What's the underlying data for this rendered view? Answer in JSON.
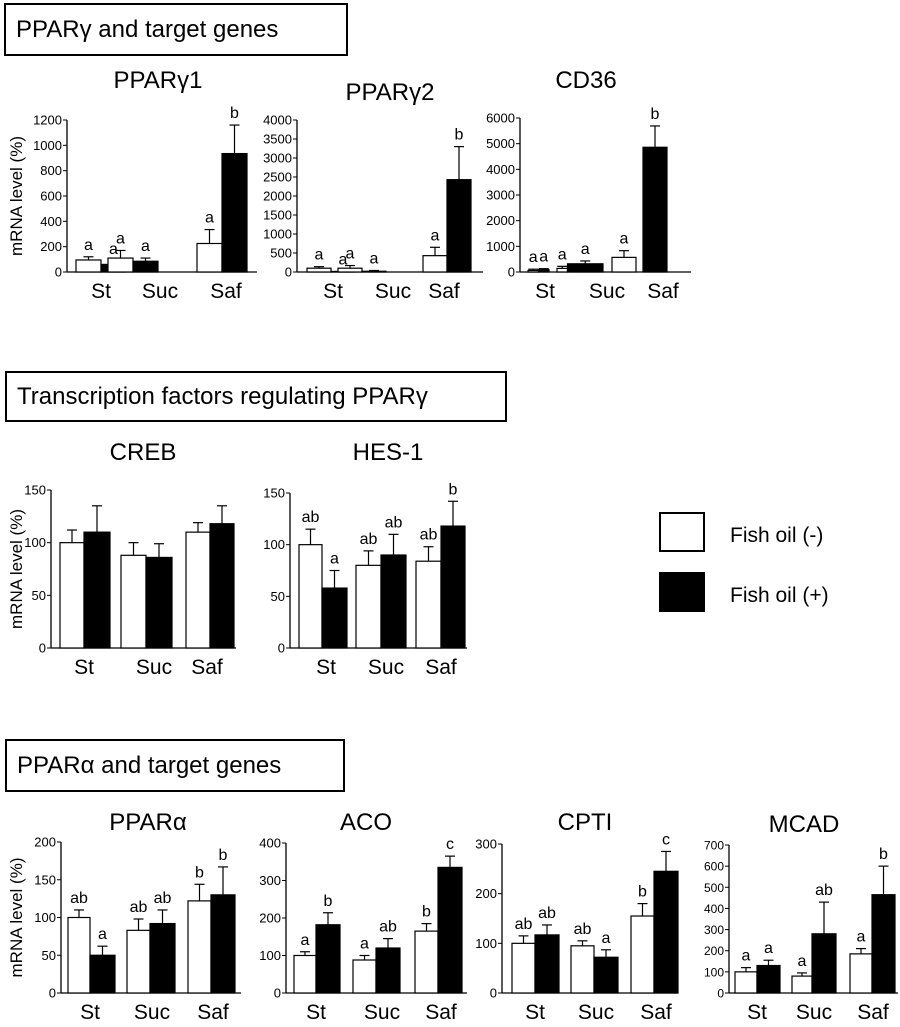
{
  "sections": [
    {
      "title": "PPARγ and target genes"
    },
    {
      "title": "Transcription factors regulating PPARγ"
    },
    {
      "title": "PPARα and target genes"
    }
  ],
  "legend": {
    "items": [
      {
        "label": "Fish oil (-)",
        "color": "#ffffff"
      },
      {
        "label": "Fish oil (+)",
        "color": "#000000"
      }
    ]
  },
  "chart_data": [
    {
      "type": "bar",
      "title": "PPARγ1",
      "ylabel": "mRNA level (%)",
      "ylim": [
        0,
        1200
      ],
      "yticks": [
        0,
        200,
        400,
        600,
        800,
        1000,
        1200
      ],
      "categories": [
        "St",
        "Suc",
        "Saf"
      ],
      "series": [
        {
          "name": "Fish oil (-)",
          "values": [
            95,
            110,
            225
          ],
          "errors": [
            25,
            60,
            110
          ]
        },
        {
          "name": "Fish oil (+)",
          "values": [
            60,
            85,
            935
          ],
          "errors": [
            25,
            25,
            225
          ]
        }
      ],
      "annotations": [
        [
          "a",
          "a"
        ],
        [
          "a",
          "a"
        ],
        [
          "a",
          "b"
        ]
      ]
    },
    {
      "type": "bar",
      "title": "PPARγ2",
      "ylabel": "",
      "ylim": [
        0,
        4000
      ],
      "yticks": [
        0,
        500,
        1000,
        1500,
        2000,
        2500,
        3000,
        3500,
        4000
      ],
      "categories": [
        "St",
        "Suc",
        "Saf"
      ],
      "series": [
        {
          "name": "Fish oil (-)",
          "values": [
            100,
            100,
            430
          ],
          "errors": [
            40,
            70,
            220
          ]
        },
        {
          "name": "Fish oil (+)",
          "values": [
            15,
            20,
            2430
          ],
          "errors": [
            0,
            20,
            870
          ]
        }
      ],
      "annotations": [
        [
          "a",
          "a"
        ],
        [
          "a",
          "a"
        ],
        [
          "a",
          "b"
        ]
      ]
    },
    {
      "type": "bar",
      "title": "CD36",
      "ylabel": "",
      "ylim": [
        0,
        6000
      ],
      "yticks": [
        0,
        1000,
        2000,
        3000,
        4000,
        5000,
        6000
      ],
      "categories": [
        "St",
        "Suc",
        "Saf"
      ],
      "series": [
        {
          "name": "Fish oil (-)",
          "values": [
            60,
            140,
            570
          ],
          "errors": [
            50,
            80,
            260
          ]
        },
        {
          "name": "Fish oil (+)",
          "values": [
            90,
            320,
            4860
          ],
          "errors": [
            40,
            110,
            830
          ]
        }
      ],
      "annotations": [
        [
          "a",
          "a"
        ],
        [
          "a",
          "a"
        ],
        [
          "a",
          "b"
        ]
      ]
    },
    {
      "type": "bar",
      "title": "CREB",
      "ylabel": "mRNA level (%)",
      "ylim": [
        0,
        150
      ],
      "yticks": [
        0,
        50,
        100,
        150
      ],
      "categories": [
        "St",
        "Suc",
        "Saf"
      ],
      "series": [
        {
          "name": "Fish oil (-)",
          "values": [
            100,
            88,
            110
          ],
          "errors": [
            12,
            12,
            9
          ]
        },
        {
          "name": "Fish oil (+)",
          "values": [
            110,
            86,
            118
          ],
          "errors": [
            25,
            13,
            17
          ]
        }
      ],
      "annotations": [
        [
          "",
          ""
        ],
        [
          "",
          ""
        ],
        [
          "",
          ""
        ]
      ]
    },
    {
      "type": "bar",
      "title": "HES-1",
      "ylabel": "",
      "ylim": [
        0,
        150
      ],
      "yticks": [
        0,
        50,
        100,
        150
      ],
      "categories": [
        "St",
        "Suc",
        "Saf"
      ],
      "series": [
        {
          "name": "Fish oil (-)",
          "values": [
            100,
            80,
            84
          ],
          "errors": [
            15,
            14,
            14
          ]
        },
        {
          "name": "Fish oil (+)",
          "values": [
            58,
            90,
            118
          ],
          "errors": [
            17,
            20,
            24
          ]
        }
      ],
      "annotations": [
        [
          "ab",
          "a"
        ],
        [
          "ab",
          "ab"
        ],
        [
          "ab",
          "b"
        ]
      ]
    },
    {
      "type": "bar",
      "title": "PPARα",
      "ylabel": "mRNA level (%)",
      "ylim": [
        0,
        200
      ],
      "yticks": [
        0,
        50,
        100,
        150,
        200
      ],
      "categories": [
        "St",
        "Suc",
        "Saf"
      ],
      "series": [
        {
          "name": "Fish oil (-)",
          "values": [
            100,
            83,
            122
          ],
          "errors": [
            10,
            15,
            22
          ]
        },
        {
          "name": "Fish oil (+)",
          "values": [
            50,
            92,
            130
          ],
          "errors": [
            12,
            18,
            37
          ]
        }
      ],
      "annotations": [
        [
          "ab",
          "a"
        ],
        [
          "ab",
          "ab"
        ],
        [
          "b",
          "b"
        ]
      ]
    },
    {
      "type": "bar",
      "title": "ACO",
      "ylabel": "",
      "ylim": [
        0,
        400
      ],
      "yticks": [
        0,
        100,
        200,
        300,
        400
      ],
      "categories": [
        "St",
        "Suc",
        "Saf"
      ],
      "series": [
        {
          "name": "Fish oil (-)",
          "values": [
            100,
            88,
            165
          ],
          "errors": [
            10,
            12,
            20
          ]
        },
        {
          "name": "Fish oil (+)",
          "values": [
            182,
            120,
            335
          ],
          "errors": [
            32,
            25,
            30
          ]
        }
      ],
      "annotations": [
        [
          "a",
          "b"
        ],
        [
          "a",
          "ab"
        ],
        [
          "b",
          "c"
        ]
      ]
    },
    {
      "type": "bar",
      "title": "CPTI",
      "ylabel": "",
      "ylim": [
        0,
        300
      ],
      "yticks": [
        0,
        100,
        200,
        300
      ],
      "categories": [
        "St",
        "Suc",
        "Saf"
      ],
      "series": [
        {
          "name": "Fish oil (-)",
          "values": [
            100,
            95,
            155
          ],
          "errors": [
            15,
            10,
            25
          ]
        },
        {
          "name": "Fish oil (+)",
          "values": [
            117,
            72,
            245
          ],
          "errors": [
            20,
            15,
            40
          ]
        }
      ],
      "annotations": [
        [
          "ab",
          "ab"
        ],
        [
          "ab",
          "a"
        ],
        [
          "b",
          "c"
        ]
      ]
    },
    {
      "type": "bar",
      "title": "MCAD",
      "ylabel": "",
      "ylim": [
        0,
        700
      ],
      "yticks": [
        0,
        100,
        200,
        300,
        400,
        500,
        600,
        700
      ],
      "categories": [
        "St",
        "Suc",
        "Saf"
      ],
      "series": [
        {
          "name": "Fish oil (-)",
          "values": [
            100,
            80,
            185
          ],
          "errors": [
            20,
            15,
            25
          ]
        },
        {
          "name": "Fish oil (+)",
          "values": [
            130,
            280,
            465
          ],
          "errors": [
            25,
            150,
            135
          ]
        }
      ],
      "annotations": [
        [
          "a",
          "a"
        ],
        [
          "a",
          "ab"
        ],
        [
          "a",
          "b"
        ]
      ]
    }
  ]
}
